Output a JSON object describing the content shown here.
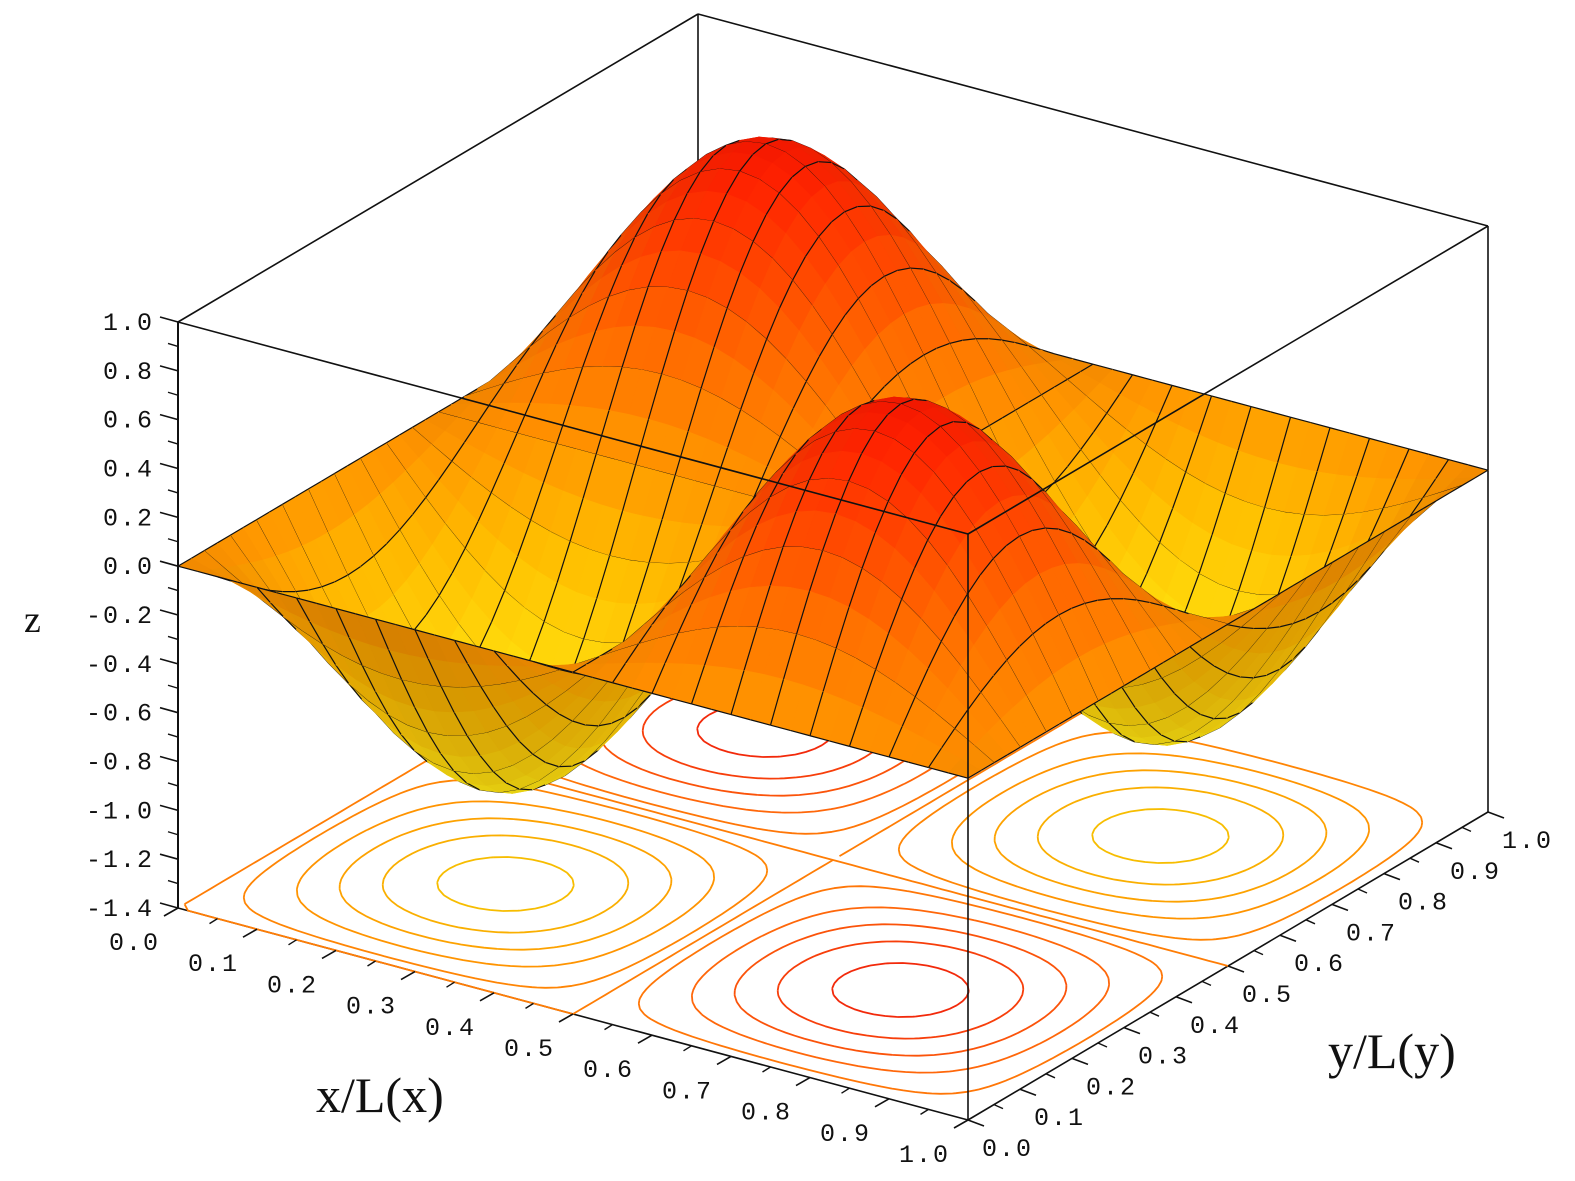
{
  "chart_data": {
    "type": "surface3d",
    "title": "",
    "function_description": "z = sin(2*pi*x) * sin(2*pi*y) style surface with two peaks (z=1.0) and two troughs (z=-1.0) over unit square; contour projection on floor",
    "xlabel": "x/L(x)",
    "ylabel": "y/L(y)",
    "zlabel": "z",
    "x_ticks": [
      "0.0",
      "0.1",
      "0.2",
      "0.3",
      "0.4",
      "0.5",
      "0.6",
      "0.7",
      "0.8",
      "0.9",
      "1.0"
    ],
    "y_ticks": [
      "0.0",
      "0.1",
      "0.2",
      "0.3",
      "0.4",
      "0.5",
      "0.6",
      "0.7",
      "0.8",
      "0.9",
      "1.0"
    ],
    "z_ticks": [
      "1.0",
      "0.8",
      "0.6",
      "0.4",
      "0.2",
      "0.0",
      "-0.2",
      "-0.4",
      "-0.6",
      "-0.8",
      "-1.0",
      "-1.2",
      "-1.4"
    ],
    "xlim": [
      0,
      1
    ],
    "ylim": [
      0,
      1
    ],
    "zlim": [
      -1.4,
      1.0
    ],
    "peaks": [
      {
        "x": 0.25,
        "y": 0.75,
        "z": 1.0
      },
      {
        "x": 0.75,
        "y": 0.25,
        "z": 1.0
      }
    ],
    "troughs": [
      {
        "x": 0.25,
        "y": 0.25,
        "z": -1.0
      },
      {
        "x": 0.75,
        "y": 0.75,
        "z": -1.0
      }
    ],
    "contour_levels": [
      -0.9,
      -0.7,
      -0.5,
      -0.3,
      -0.1,
      0.0,
      0.1,
      0.3,
      0.5,
      0.7,
      0.9
    ],
    "grid": false,
    "mesh_lines": 20,
    "colormap": [
      "#f5e400",
      "#ffa800",
      "#ff6a00",
      "#ff1a00"
    ]
  },
  "axes": {
    "x_title": "x/L(x)",
    "y_title": "y/L(y)",
    "z_title": "z"
  }
}
